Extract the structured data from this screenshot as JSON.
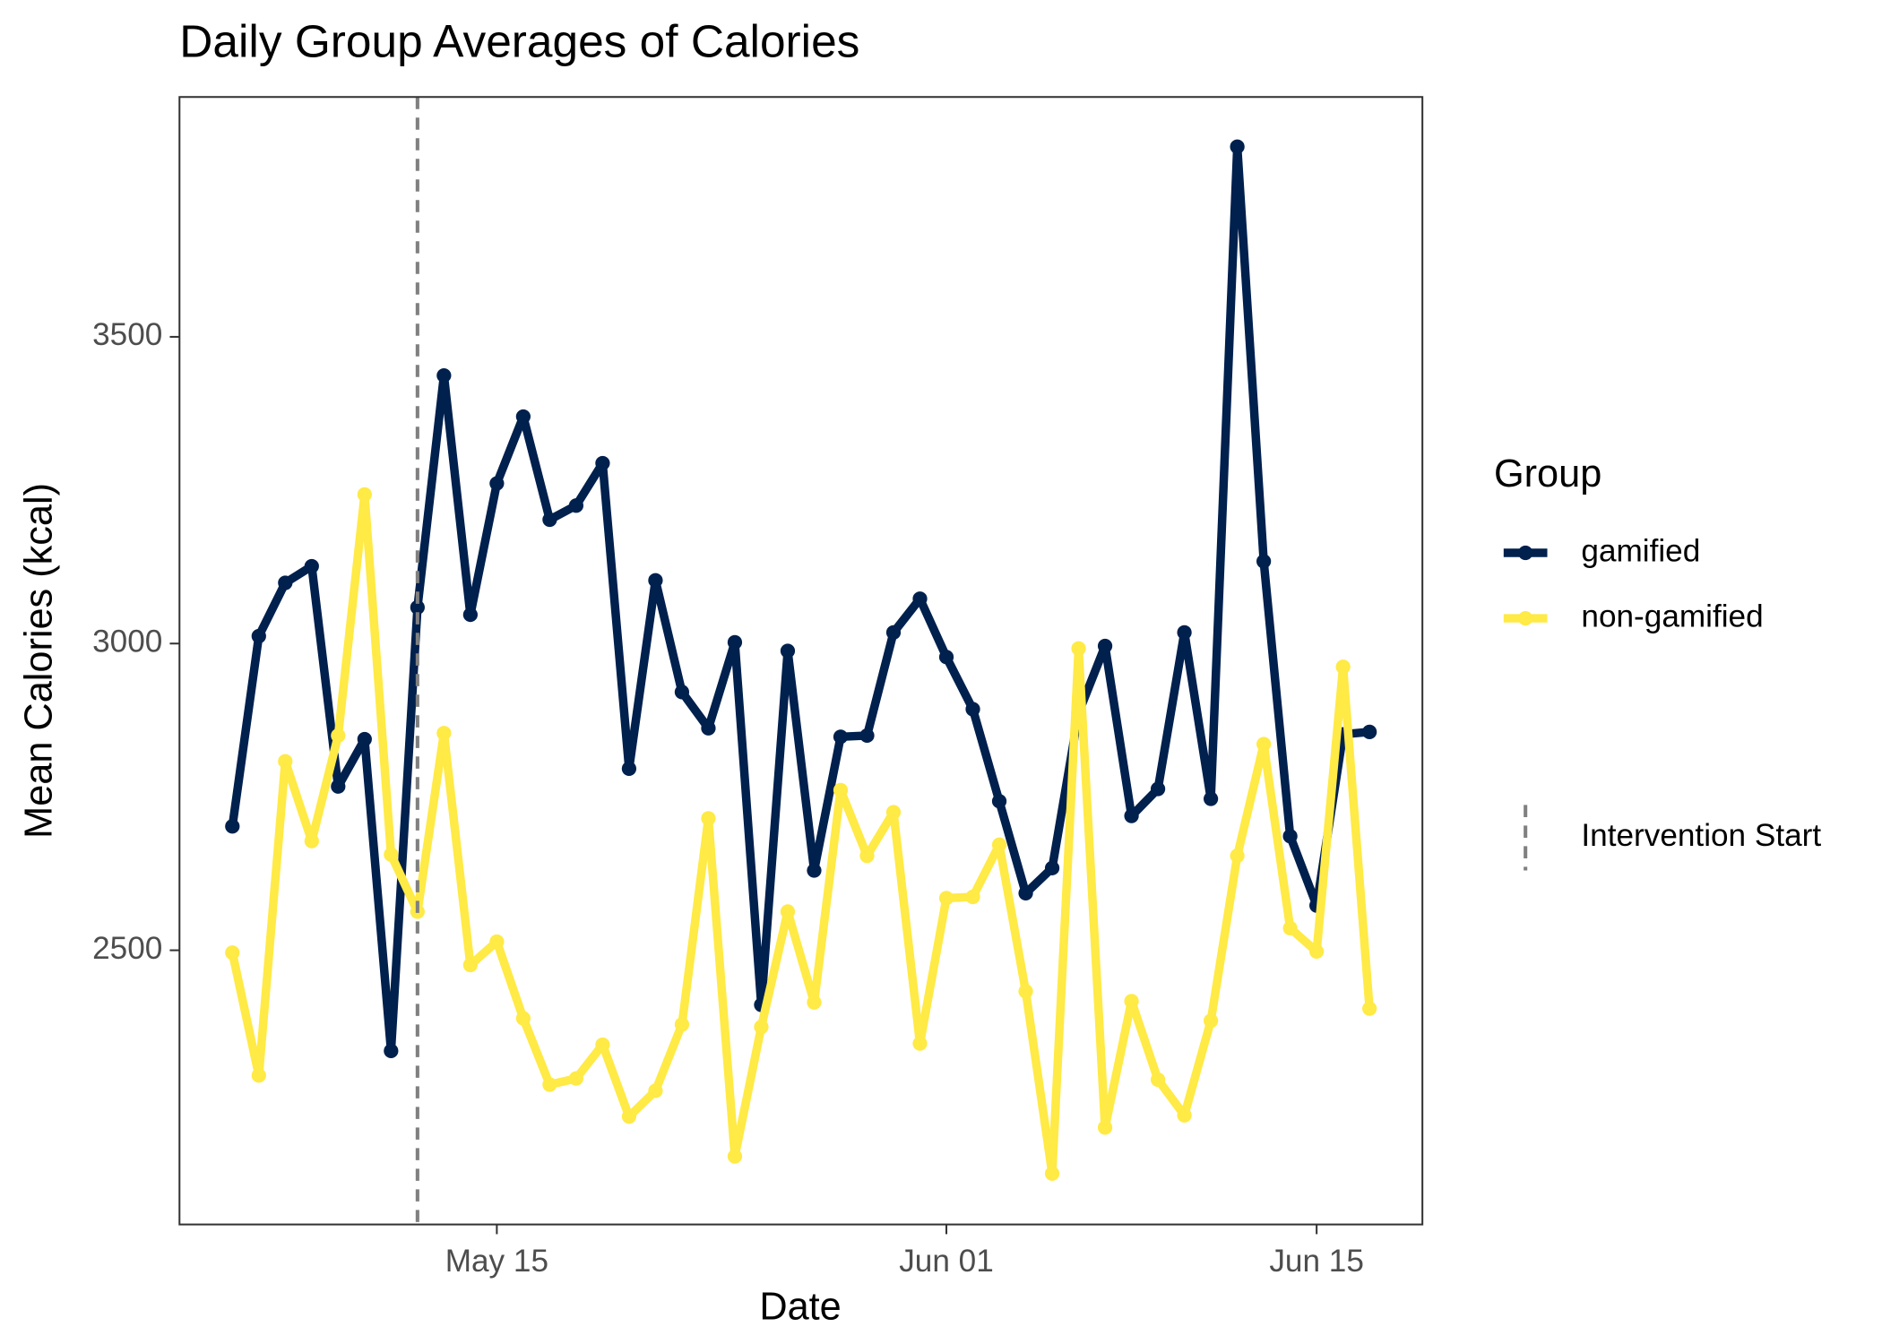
{
  "chart_data": {
    "type": "line",
    "title": "Daily Group Averages of Calories",
    "x_label": "Date",
    "y_label": "Mean Calories (kcal)",
    "legend_title": "Group",
    "x": [
      "May 05",
      "May 06",
      "May 07",
      "May 08",
      "May 09",
      "May 10",
      "May 11",
      "May 12",
      "May 13",
      "May 14",
      "May 15",
      "May 16",
      "May 17",
      "May 18",
      "May 19",
      "May 20",
      "May 21",
      "May 22",
      "May 23",
      "May 24",
      "May 25",
      "May 26",
      "May 27",
      "May 28",
      "May 29",
      "May 30",
      "May 31",
      "Jun 01",
      "Jun 02",
      "Jun 03",
      "Jun 04",
      "Jun 05",
      "Jun 06",
      "Jun 07",
      "Jun 08",
      "Jun 09",
      "Jun 10",
      "Jun 11",
      "Jun 12",
      "Jun 13",
      "Jun 14",
      "Jun 15",
      "Jun 16",
      "Jun 17"
    ],
    "series": [
      {
        "name": "gamified",
        "color": "#00204d",
        "values": [
          2702,
          3012,
          3099,
          3126,
          2767,
          2844,
          2336,
          3059,
          3437,
          3047,
          3261,
          3370,
          3202,
          3225,
          3294,
          2796,
          3103,
          2921,
          2862,
          3002,
          2411,
          2988,
          2630,
          2848,
          2850,
          3018,
          3073,
          2978,
          2893,
          2743,
          2593,
          2634,
          2887,
          2996,
          2719,
          2763,
          3018,
          2747,
          3810,
          3134,
          2686,
          2573,
          2852,
          2856
        ]
      },
      {
        "name": "non-gamified",
        "color": "#ffea46",
        "values": [
          2496,
          2296,
          2808,
          2678,
          2850,
          3243,
          2656,
          2563,
          2854,
          2476,
          2514,
          2389,
          2281,
          2291,
          2346,
          2229,
          2271,
          2379,
          2715,
          2164,
          2375,
          2563,
          2415,
          2761,
          2654,
          2725,
          2348,
          2585,
          2587,
          2672,
          2433,
          2136,
          2992,
          2211,
          2417,
          2289,
          2231,
          2385,
          2654,
          2836,
          2536,
          2498,
          2962,
          2405
        ]
      }
    ],
    "xlim": [
      "May 03",
      "Jun 19"
    ],
    "xticks": [
      "May 15",
      "Jun 01",
      "Jun 15"
    ],
    "ylim": [
      2053,
      3891
    ],
    "yticks": [
      2500,
      3000,
      3500
    ],
    "vline": {
      "x": "May 12",
      "label": "Intervention Start",
      "color": "#808080"
    },
    "grid": false
  }
}
